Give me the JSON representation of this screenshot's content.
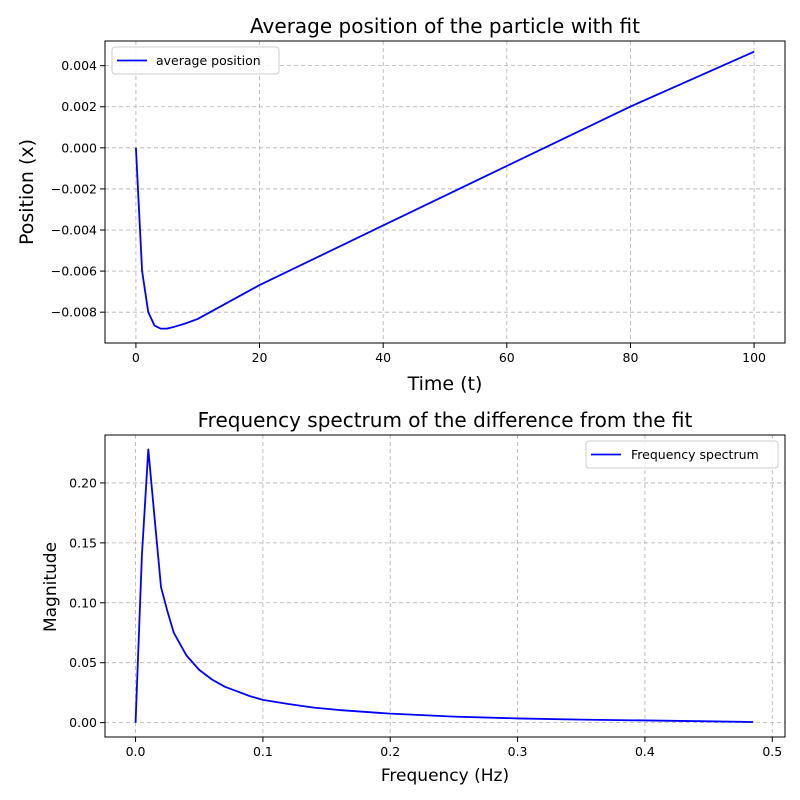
{
  "chart_data": [
    {
      "type": "line",
      "title": "Average position of the particle with fit",
      "xlabel": "Time (t)",
      "ylabel": "Position (x)",
      "xlim": [
        -5,
        105
      ],
      "ylim": [
        -0.0095,
        0.0052
      ],
      "xticks": [
        0,
        20,
        40,
        60,
        80,
        100
      ],
      "xtick_labels": [
        "0",
        "20",
        "40",
        "60",
        "80",
        "100"
      ],
      "yticks": [
        -0.008,
        -0.006,
        -0.004,
        -0.002,
        0.0,
        0.002,
        0.004
      ],
      "ytick_labels": [
        "−0.008",
        "−0.006",
        "−0.004",
        "−0.002",
        "0.000",
        "0.002",
        "0.004"
      ],
      "grid": true,
      "legend_position": "top-left",
      "series": [
        {
          "name": "average position",
          "color": "#0000ff",
          "x": [
            0,
            1,
            2,
            3,
            4,
            5,
            6,
            8,
            10,
            20,
            40,
            60,
            80,
            100
          ],
          "y": [
            0.0,
            -0.006,
            -0.008,
            -0.00865,
            -0.0088,
            -0.0088,
            -0.00873,
            -0.00855,
            -0.00833,
            -0.00668,
            -0.00378,
            -0.00088,
            0.00201,
            0.00468
          ]
        }
      ]
    },
    {
      "type": "line",
      "title": "Frequency spectrum of the difference from the fit",
      "xlabel": "Frequency (Hz)",
      "ylabel": "Magnitude",
      "xlim": [
        -0.024,
        0.51
      ],
      "ylim": [
        -0.012,
        0.24
      ],
      "xticks": [
        0.0,
        0.1,
        0.2,
        0.3,
        0.4,
        0.5
      ],
      "xtick_labels": [
        "0.0",
        "0.1",
        "0.2",
        "0.3",
        "0.4",
        "0.5"
      ],
      "yticks": [
        0.0,
        0.05,
        0.1,
        0.15,
        0.2
      ],
      "ytick_labels": [
        "0.00",
        "0.05",
        "0.10",
        "0.15",
        "0.20"
      ],
      "grid": true,
      "legend_position": "top-right",
      "series": [
        {
          "name": "Frequency spectrum",
          "color": "#0000ff",
          "x": [
            0.0,
            0.005,
            0.01,
            0.015,
            0.02,
            0.025,
            0.03,
            0.04,
            0.05,
            0.06,
            0.07,
            0.08,
            0.09,
            0.1,
            0.12,
            0.14,
            0.16,
            0.2,
            0.25,
            0.3,
            0.35,
            0.4,
            0.45,
            0.485
          ],
          "y": [
            0.0,
            0.14,
            0.228,
            0.17,
            0.113,
            0.093,
            0.075,
            0.056,
            0.044,
            0.036,
            0.03,
            0.026,
            0.022,
            0.019,
            0.0155,
            0.0125,
            0.0105,
            0.0075,
            0.005,
            0.0035,
            0.0025,
            0.0018,
            0.0011,
            0.0005
          ]
        }
      ]
    }
  ]
}
